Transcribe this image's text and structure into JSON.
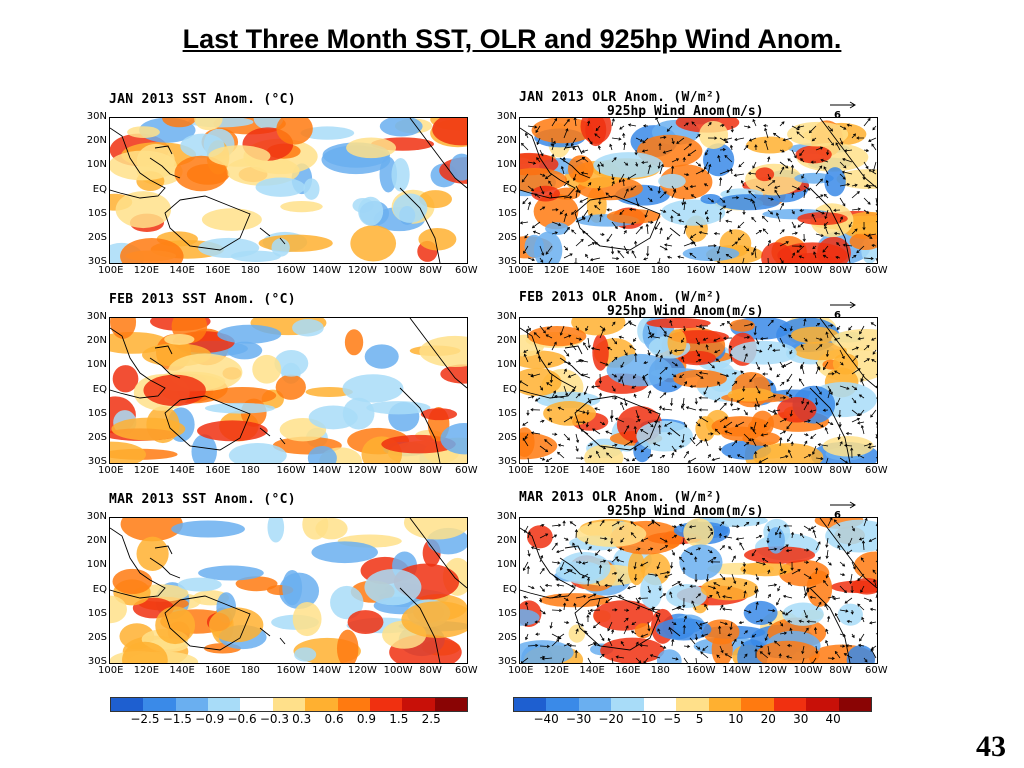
{
  "slide": {
    "title": "Last Three Month SST, OLR and 925hp Wind Anom.",
    "page_number": "43"
  },
  "panels": [
    {
      "id": "sst-jan",
      "title": "JAN 2013 SST Anom. (°C)",
      "subtitle": ""
    },
    {
      "id": "olr-jan",
      "title": "JAN 2013 OLR Anom. (W/m²)",
      "subtitle": "925hp Wind Anom(m/s)",
      "ref_value": "6"
    },
    {
      "id": "sst-feb",
      "title": "FEB 2013 SST Anom. (°C)",
      "subtitle": ""
    },
    {
      "id": "olr-feb",
      "title": "FEB 2013 OLR Anom. (W/m²)",
      "subtitle": "925hp Wind Anom(m/s)",
      "ref_value": "6"
    },
    {
      "id": "sst-mar",
      "title": "MAR 2013 SST Anom. (°C)",
      "subtitle": ""
    },
    {
      "id": "olr-mar",
      "title": "MAR 2013 OLR Anom. (W/m²)",
      "subtitle": "925hp Wind Anom(m/s)",
      "ref_value": "6"
    }
  ],
  "lat_labels": [
    "30N",
    "20N",
    "10N",
    "EQ",
    "10S",
    "20S",
    "30S"
  ],
  "lon_labels": [
    "100E",
    "120E",
    "140E",
    "160E",
    "180",
    "160W",
    "140W",
    "120W",
    "100W",
    "80W",
    "60W"
  ],
  "sst_colorbar": {
    "colors": [
      "#1e5fd0",
      "#3a8ae8",
      "#6aaff0",
      "#a8dcf8",
      "#ffffff",
      "#ffe08a",
      "#ffb030",
      "#ff7a10",
      "#f03010",
      "#c81008",
      "#8a0404"
    ],
    "labels": [
      "−2.5",
      "−1.5",
      "−0.9",
      "−0.6",
      "−0.3",
      "0.3",
      "0.6",
      "0.9",
      "1.5",
      "2.5"
    ]
  },
  "olr_colorbar": {
    "colors": [
      "#1e5fd0",
      "#3a8ae8",
      "#6aaff0",
      "#a8dcf8",
      "#ffffff",
      "#ffe08a",
      "#ffb030",
      "#ff7a10",
      "#f03010",
      "#c81008",
      "#8a0404"
    ],
    "labels": [
      "−40",
      "−30",
      "−20",
      "−10",
      "−5",
      "5",
      "10",
      "20",
      "30",
      "40"
    ]
  }
}
